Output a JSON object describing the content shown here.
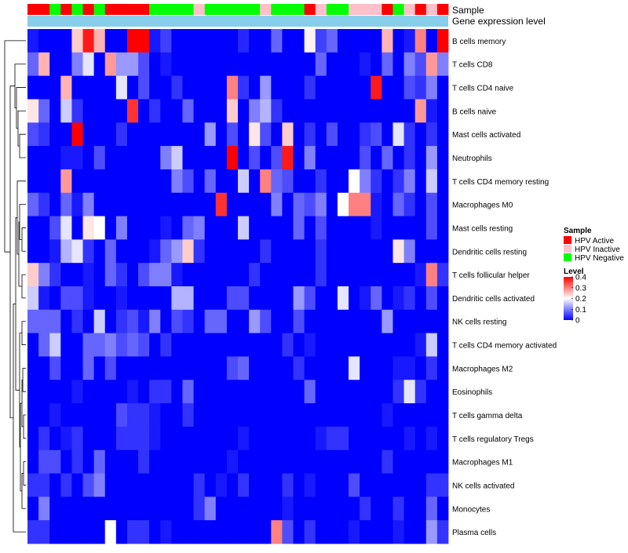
{
  "chart_data": {
    "type": "heatmap",
    "title": "",
    "annotation_labels": {
      "sample": "Sample",
      "expression": "Gene expression level"
    },
    "rows": [
      "B cells memory",
      "T cells CD8",
      "T cells CD4 naive",
      "B cells naive",
      "Mast cells activated",
      "Neutrophils",
      "T cells CD4 memory resting",
      "Macrophages M0",
      "Mast cells resting",
      "Dendritic cells resting",
      "T cells follicular helper",
      "Dendritic cells activated",
      "NK cells resting",
      "T cells CD4 memory activated",
      "Macrophages M2",
      "Eosinophils",
      "T cells gamma delta",
      "T cells regulatory  Tregs",
      "Macrophages M1",
      "NK cells activated",
      "Monocytes",
      "Plasma cells"
    ],
    "sample_groups": [
      "A",
      "A",
      "N",
      "A",
      "N",
      "A",
      "N",
      "A",
      "A",
      "A",
      "A",
      "N",
      "N",
      "N",
      "N",
      "I",
      "N",
      "N",
      "N",
      "N",
      "N",
      "I",
      "N",
      "N",
      "N",
      "A",
      "I",
      "N",
      "N",
      "I",
      "I",
      "I",
      "A",
      "N",
      "I",
      "A",
      "I",
      "A"
    ],
    "legend": {
      "sample_title": "Sample",
      "sample_entries": [
        {
          "key": "A",
          "label": "HPV Active",
          "color": "#ff0000"
        },
        {
          "key": "I",
          "label": "HPV Inactive",
          "color": "#ffc0cb"
        },
        {
          "key": "N",
          "label": "HPV Negative",
          "color": "#00ff00"
        }
      ],
      "level_title": "Level",
      "level_ticks": [
        0,
        0.1,
        0.2,
        0.3,
        0.4
      ]
    },
    "color_scale": {
      "low": "#0000ff",
      "mid": "#ffffff",
      "high": "#ff0000",
      "min": 0,
      "mid_value": 0.2,
      "max": 0.4
    },
    "values": [
      [
        0.02,
        0.0,
        0.0,
        0.0,
        0.24,
        0.38,
        0.26,
        0.0,
        0.0,
        0.4,
        0.4,
        0.02,
        0.05,
        0.0,
        0.0,
        0.0,
        0.0,
        0.0,
        0.0,
        0.03,
        0.0,
        0.0,
        0.08,
        0.0,
        0.0,
        0.21,
        0.05,
        0.08,
        0.0,
        0.0,
        0.0,
        0.0,
        0.26,
        0.0,
        0.02,
        0.3,
        0.0,
        0.4
      ],
      [
        0.08,
        0.26,
        0.0,
        0.0,
        0.1,
        0.18,
        0.0,
        0.28,
        0.12,
        0.12,
        0.06,
        0.0,
        0.02,
        0.0,
        0.0,
        0.0,
        0.0,
        0.0,
        0.0,
        0.0,
        0.0,
        0.0,
        0.0,
        0.0,
        0.0,
        0.0,
        0.08,
        0.0,
        0.0,
        0.0,
        0.02,
        0.0,
        0.08,
        0.0,
        0.1,
        0.06,
        0.28,
        0.1
      ],
      [
        0.0,
        0.0,
        0.0,
        0.26,
        0.0,
        0.0,
        0.0,
        0.0,
        0.18,
        0.0,
        0.06,
        0.0,
        0.0,
        0.04,
        0.0,
        0.0,
        0.0,
        0.0,
        0.3,
        0.04,
        0.0,
        0.12,
        0.0,
        0.0,
        0.0,
        0.04,
        0.0,
        0.0,
        0.0,
        0.0,
        0.0,
        0.38,
        0.0,
        0.0,
        0.06,
        0.04,
        0.1,
        0.0
      ],
      [
        0.22,
        0.08,
        0.0,
        0.16,
        0.04,
        0.0,
        0.0,
        0.0,
        0.0,
        0.36,
        0.0,
        0.04,
        0.0,
        0.0,
        0.08,
        0.0,
        0.0,
        0.0,
        0.24,
        0.0,
        0.1,
        0.14,
        0.04,
        0.0,
        0.0,
        0.0,
        0.0,
        0.0,
        0.0,
        0.0,
        0.0,
        0.0,
        0.0,
        0.0,
        0.0,
        0.28,
        0.02,
        0.0
      ],
      [
        0.06,
        0.04,
        0.0,
        0.0,
        0.4,
        0.0,
        0.0,
        0.0,
        0.04,
        0.0,
        0.0,
        0.0,
        0.0,
        0.0,
        0.0,
        0.0,
        0.12,
        0.0,
        0.06,
        0.0,
        0.22,
        0.06,
        0.0,
        0.24,
        0.0,
        0.04,
        0.0,
        0.06,
        0.0,
        0.0,
        0.04,
        0.06,
        0.0,
        0.18,
        0.04,
        0.0,
        0.04,
        0.0
      ],
      [
        0.0,
        0.0,
        0.0,
        0.02,
        0.02,
        0.0,
        0.06,
        0.0,
        0.0,
        0.0,
        0.0,
        0.0,
        0.1,
        0.16,
        0.0,
        0.0,
        0.0,
        0.0,
        0.4,
        0.0,
        0.06,
        0.0,
        0.06,
        0.38,
        0.0,
        0.1,
        0.0,
        0.0,
        0.0,
        0.0,
        0.06,
        0.0,
        0.08,
        0.0,
        0.04,
        0.0,
        0.12,
        0.0
      ],
      [
        0.0,
        0.0,
        0.0,
        0.28,
        0.0,
        0.0,
        0.0,
        0.0,
        0.0,
        0.0,
        0.0,
        0.0,
        0.0,
        0.1,
        0.06,
        0.0,
        0.08,
        0.0,
        0.0,
        0.16,
        0.0,
        0.3,
        0.08,
        0.06,
        0.0,
        0.0,
        0.04,
        0.0,
        0.0,
        0.2,
        0.1,
        0.04,
        0.0,
        0.04,
        0.1,
        0.0,
        0.16,
        0.0
      ],
      [
        0.08,
        0.04,
        0.0,
        0.08,
        0.02,
        0.1,
        0.0,
        0.0,
        0.0,
        0.0,
        0.0,
        0.0,
        0.0,
        0.0,
        0.0,
        0.0,
        0.0,
        0.36,
        0.0,
        0.0,
        0.0,
        0.0,
        0.1,
        0.0,
        0.08,
        0.06,
        0.1,
        0.0,
        0.2,
        0.3,
        0.3,
        0.02,
        0.0,
        0.08,
        0.04,
        0.0,
        0.06,
        0.0
      ],
      [
        0.0,
        0.0,
        0.06,
        0.18,
        0.0,
        0.22,
        0.2,
        0.0,
        0.1,
        0.0,
        0.0,
        0.0,
        0.02,
        0.0,
        0.08,
        0.1,
        0.0,
        0.0,
        0.0,
        0.16,
        0.0,
        0.0,
        0.0,
        0.0,
        0.08,
        0.0,
        0.06,
        0.0,
        0.0,
        0.0,
        0.0,
        0.02,
        0.0,
        0.0,
        0.0,
        0.0,
        0.06,
        0.0
      ],
      [
        0.0,
        0.0,
        0.02,
        0.14,
        0.18,
        0.04,
        0.0,
        0.08,
        0.0,
        0.0,
        0.0,
        0.02,
        0.08,
        0.12,
        0.24,
        0.04,
        0.0,
        0.0,
        0.0,
        0.0,
        0.0,
        0.04,
        0.0,
        0.0,
        0.0,
        0.0,
        0.04,
        0.0,
        0.0,
        0.0,
        0.0,
        0.0,
        0.0,
        0.22,
        0.1,
        0.0,
        0.0,
        0.0
      ],
      [
        0.24,
        0.1,
        0.04,
        0.0,
        0.0,
        0.02,
        0.0,
        0.08,
        0.04,
        0.0,
        0.06,
        0.1,
        0.1,
        0.02,
        0.0,
        0.0,
        0.0,
        0.0,
        0.0,
        0.0,
        0.04,
        0.0,
        0.0,
        0.0,
        0.0,
        0.0,
        0.04,
        0.0,
        0.0,
        0.0,
        0.0,
        0.0,
        0.0,
        0.0,
        0.0,
        0.02,
        0.3,
        0.04
      ],
      [
        0.16,
        0.02,
        0.0,
        0.06,
        0.06,
        0.02,
        0.0,
        0.0,
        0.02,
        0.0,
        0.0,
        0.0,
        0.0,
        0.14,
        0.14,
        0.0,
        0.0,
        0.0,
        0.06,
        0.06,
        0.0,
        0.0,
        0.0,
        0.0,
        0.12,
        0.06,
        0.0,
        0.0,
        0.18,
        0.0,
        0.02,
        0.08,
        0.0,
        0.02,
        0.04,
        0.0,
        0.06,
        0.0
      ],
      [
        0.08,
        0.08,
        0.08,
        0.0,
        0.04,
        0.0,
        0.16,
        0.0,
        0.04,
        0.06,
        0.02,
        0.1,
        0.0,
        0.06,
        0.04,
        0.0,
        0.08,
        0.08,
        0.0,
        0.0,
        0.12,
        0.06,
        0.0,
        0.0,
        0.06,
        0.0,
        0.0,
        0.0,
        0.0,
        0.0,
        0.0,
        0.0,
        0.12,
        0.0,
        0.0,
        0.0,
        0.0,
        0.0
      ],
      [
        0.0,
        0.08,
        0.16,
        0.0,
        0.0,
        0.08,
        0.08,
        0.1,
        0.06,
        0.08,
        0.06,
        0.0,
        0.04,
        0.0,
        0.0,
        0.0,
        0.0,
        0.0,
        0.0,
        0.0,
        0.0,
        0.0,
        0.0,
        0.04,
        0.0,
        0.02,
        0.0,
        0.0,
        0.0,
        0.0,
        0.0,
        0.0,
        0.0,
        0.0,
        0.0,
        0.02,
        0.16,
        0.0
      ],
      [
        0.0,
        0.0,
        0.06,
        0.0,
        0.0,
        0.08,
        0.0,
        0.06,
        0.0,
        0.0,
        0.0,
        0.0,
        0.0,
        0.0,
        0.0,
        0.0,
        0.0,
        0.0,
        0.06,
        0.08,
        0.0,
        0.0,
        0.0,
        0.0,
        0.04,
        0.0,
        0.0,
        0.0,
        0.0,
        0.18,
        0.0,
        0.0,
        0.0,
        0.02,
        0.02,
        0.0,
        0.04,
        0.0
      ],
      [
        0.0,
        0.0,
        0.0,
        0.0,
        0.02,
        0.0,
        0.0,
        0.0,
        0.0,
        0.02,
        0.0,
        0.04,
        0.04,
        0.0,
        0.08,
        0.0,
        0.0,
        0.0,
        0.0,
        0.0,
        0.0,
        0.0,
        0.0,
        0.0,
        0.0,
        0.08,
        0.0,
        0.0,
        0.0,
        0.0,
        0.0,
        0.0,
        0.0,
        0.04,
        0.18,
        0.04,
        0.0,
        0.0
      ],
      [
        0.0,
        0.0,
        0.02,
        0.0,
        0.0,
        0.0,
        0.0,
        0.0,
        0.06,
        0.04,
        0.04,
        0.02,
        0.0,
        0.0,
        0.04,
        0.0,
        0.0,
        0.0,
        0.0,
        0.0,
        0.0,
        0.0,
        0.0,
        0.0,
        0.0,
        0.0,
        0.0,
        0.0,
        0.0,
        0.0,
        0.0,
        0.0,
        0.02,
        0.0,
        0.0,
        0.0,
        0.0,
        0.0
      ],
      [
        0.0,
        0.04,
        0.0,
        0.02,
        0.04,
        0.0,
        0.0,
        0.0,
        0.04,
        0.04,
        0.04,
        0.02,
        0.0,
        0.0,
        0.0,
        0.0,
        0.0,
        0.0,
        0.0,
        0.02,
        0.0,
        0.0,
        0.0,
        0.0,
        0.0,
        0.0,
        0.02,
        0.04,
        0.04,
        0.0,
        0.0,
        0.0,
        0.0,
        0.0,
        0.02,
        0.0,
        0.02,
        0.0
      ],
      [
        0.0,
        0.06,
        0.06,
        0.0,
        0.04,
        0.0,
        0.08,
        0.0,
        0.0,
        0.0,
        0.04,
        0.0,
        0.0,
        0.0,
        0.0,
        0.0,
        0.0,
        0.0,
        0.02,
        0.0,
        0.0,
        0.0,
        0.0,
        0.0,
        0.0,
        0.0,
        0.0,
        0.0,
        0.0,
        0.0,
        0.0,
        0.0,
        0.04,
        0.0,
        0.0,
        0.0,
        0.0,
        0.0
      ],
      [
        0.04,
        0.04,
        0.0,
        0.04,
        0.0,
        0.06,
        0.1,
        0.0,
        0.0,
        0.0,
        0.0,
        0.0,
        0.0,
        0.0,
        0.0,
        0.04,
        0.0,
        0.02,
        0.0,
        0.04,
        0.0,
        0.0,
        0.0,
        0.04,
        0.0,
        0.02,
        0.0,
        0.0,
        0.0,
        0.06,
        0.0,
        0.0,
        0.0,
        0.0,
        0.0,
        0.0,
        0.04,
        0.04
      ],
      [
        0.0,
        0.1,
        0.0,
        0.0,
        0.0,
        0.0,
        0.0,
        0.0,
        0.0,
        0.0,
        0.0,
        0.0,
        0.0,
        0.0,
        0.0,
        0.04,
        0.1,
        0.0,
        0.0,
        0.0,
        0.0,
        0.0,
        0.0,
        0.02,
        0.0,
        0.0,
        0.0,
        0.0,
        0.0,
        0.0,
        0.04,
        0.0,
        0.0,
        0.04,
        0.0,
        0.0,
        0.08,
        0.0
      ],
      [
        0.04,
        0.04,
        0.0,
        0.0,
        0.0,
        0.0,
        0.0,
        0.2,
        0.0,
        0.04,
        0.04,
        0.0,
        0.02,
        0.0,
        0.0,
        0.0,
        0.0,
        0.0,
        0.0,
        0.0,
        0.0,
        0.0,
        0.3,
        0.06,
        0.0,
        0.04,
        0.0,
        0.0,
        0.0,
        0.02,
        0.0,
        0.0,
        0.0,
        0.02,
        0.0,
        0.0,
        0.12,
        0.04
      ]
    ]
  }
}
